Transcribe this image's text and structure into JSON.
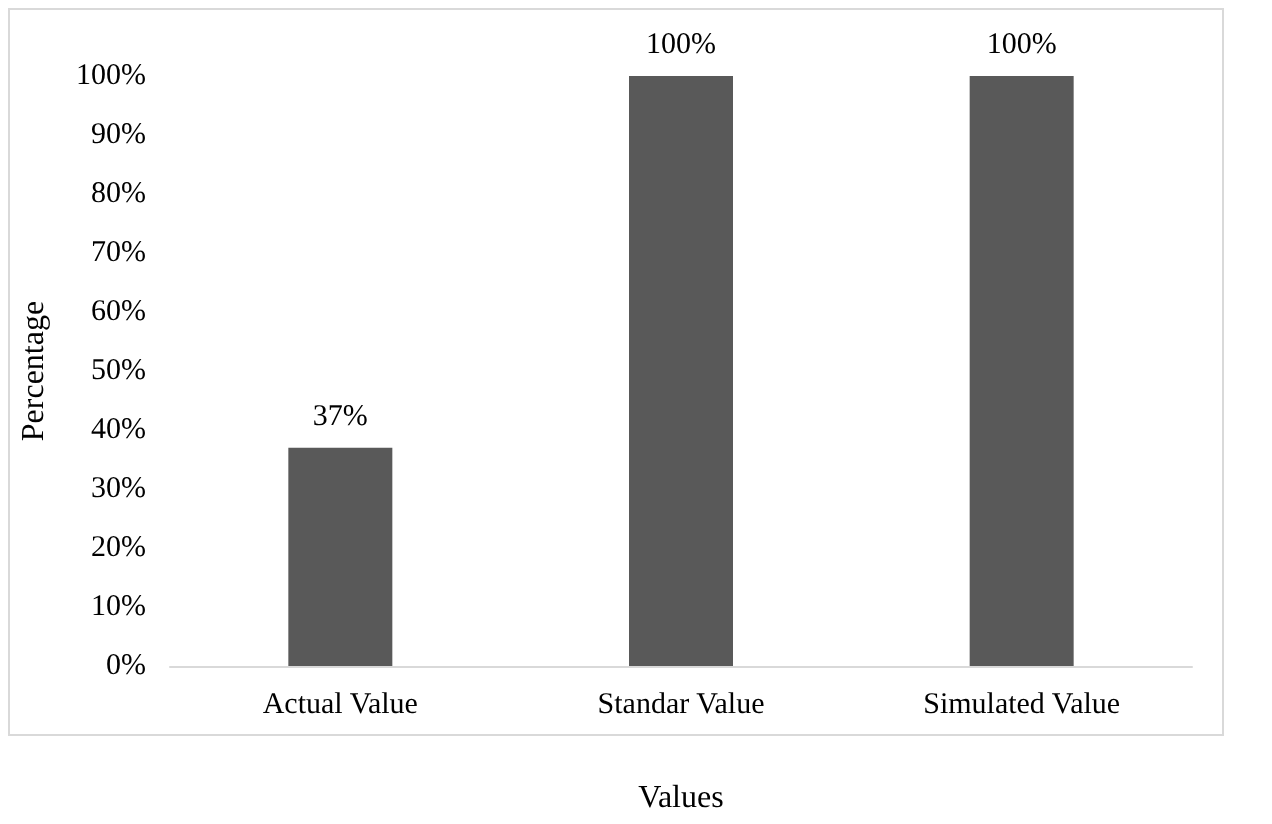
{
  "chart_data": {
    "type": "bar",
    "xlabel": "Values",
    "ylabel": "Percentage",
    "categories": [
      "Actual Value",
      "Standar Value",
      "Simulated Value"
    ],
    "values": [
      37,
      100,
      100
    ],
    "color": "#595959",
    "value_labels": [
      "37%",
      "100%",
      "100%"
    ],
    "ylim": [
      0,
      100
    ],
    "yticks": [
      {
        "value": 0,
        "label": "0%"
      },
      {
        "value": 10,
        "label": "10%"
      },
      {
        "value": 20,
        "label": "20%"
      },
      {
        "value": 30,
        "label": "30%"
      },
      {
        "value": 40,
        "label": "40%"
      },
      {
        "value": 50,
        "label": "50%"
      },
      {
        "value": 60,
        "label": "60%"
      },
      {
        "value": 70,
        "label": "70%"
      },
      {
        "value": 80,
        "label": "80%"
      },
      {
        "value": 90,
        "label": "90%"
      },
      {
        "value": 100,
        "label": "100%"
      }
    ],
    "grid": false
  }
}
